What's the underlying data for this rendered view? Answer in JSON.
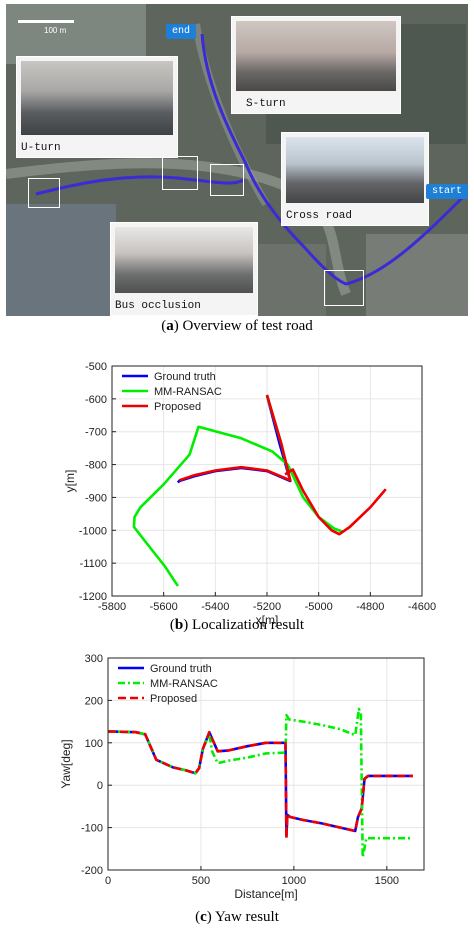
{
  "panel_a": {
    "caption_letter": "a",
    "caption_text": " Overview of test road",
    "end_tag": "end",
    "start_tag": "start",
    "scale_label": "100 m",
    "insets": [
      {
        "label": "U-turn"
      },
      {
        "label": "S-turn"
      },
      {
        "label": "Cross road"
      },
      {
        "label": "Bus occlusion"
      }
    ],
    "colors": {
      "route": "#3a2bd6",
      "tag": "#1e7fd6"
    }
  },
  "panel_b": {
    "caption_letter": "b",
    "caption_text": " Localization result"
  },
  "panel_c": {
    "caption_letter": "c",
    "caption_text": " Yaw result"
  },
  "chart_data": [
    {
      "type": "line",
      "xlabel": "x[m]",
      "ylabel": "y[m]",
      "xlim": [
        -5800,
        -4600
      ],
      "ylim": [
        -1200,
        -500
      ],
      "xticks": [
        -5800,
        -5600,
        -5400,
        -5200,
        -5000,
        -4800,
        -4600
      ],
      "yticks": [
        -500,
        -600,
        -700,
        -800,
        -900,
        -1000,
        -1100,
        -1200
      ],
      "grid": true,
      "legend_position": "top-left",
      "series": [
        {
          "name": "Ground truth",
          "color": "#0000ff",
          "style": "solid",
          "x": [
            -5200,
            -5150,
            -5110,
            -5140,
            -5200,
            -5300,
            -5400,
            -5480,
            -5540,
            -5545
          ],
          "y": [
            -590,
            -740,
            -850,
            -840,
            -820,
            -810,
            -820,
            -835,
            -850,
            -855
          ]
        },
        {
          "name": "MM-RANSAC",
          "color": "#00ee00",
          "style": "solid",
          "x": [
            -5545,
            -5595,
            -5645,
            -5695,
            -5715,
            -5713,
            -5690,
            -5600,
            -5500,
            -5465,
            -5300,
            -5180,
            -5120,
            -5060,
            -5000,
            -4940,
            -4905
          ],
          "y": [
            -1170,
            -1110,
            -1060,
            -1010,
            -990,
            -960,
            -930,
            -860,
            -770,
            -685,
            -720,
            -760,
            -800,
            -900,
            -960,
            -995,
            -1005
          ],
          "x2": [
            -5200,
            -5145,
            -5110
          ],
          "y2": [
            -590,
            -735,
            -850
          ]
        },
        {
          "name": "Proposed",
          "color": "#ee0000",
          "style": "solid",
          "x": [
            -5200,
            -5145,
            -5110,
            -5140,
            -5200,
            -5300,
            -5400,
            -5480,
            -5540
          ],
          "y": [
            -588,
            -735,
            -848,
            -838,
            -818,
            -808,
            -818,
            -832,
            -848
          ],
          "x2": [
            -5130,
            -5100,
            -5060,
            -5000,
            -4950,
            -4920,
            -4880,
            -4800,
            -4740
          ],
          "y2": [
            -830,
            -815,
            -880,
            -960,
            -1000,
            -1012,
            -990,
            -930,
            -875
          ]
        }
      ]
    },
    {
      "type": "line",
      "xlabel": "Distance[m]",
      "ylabel": "Yaw[deg]",
      "xlim": [
        0,
        1700
      ],
      "ylim": [
        -200,
        300
      ],
      "xticks": [
        0,
        500,
        1000,
        1500
      ],
      "yticks": [
        300,
        200,
        100,
        0,
        -100,
        -200
      ],
      "grid": true,
      "legend_position": "top-left",
      "series": [
        {
          "name": "Ground truth",
          "color": "#0000ff",
          "style": "solid",
          "x": [
            0,
            150,
            200,
            260,
            350,
            420,
            470,
            490,
            510,
            545,
            560,
            590,
            650,
            750,
            850,
            955,
            960,
            965,
            980,
            1050,
            1150,
            1250,
            1330,
            1345,
            1365,
            1380,
            1400,
            1500,
            1640
          ],
          "y": [
            127,
            125,
            120,
            60,
            42,
            35,
            28,
            40,
            85,
            125,
            110,
            80,
            82,
            92,
            100,
            100,
            -120,
            -70,
            -75,
            -82,
            -90,
            -100,
            -108,
            -75,
            -55,
            15,
            22,
            22,
            22
          ]
        },
        {
          "name": "MM-RANSAC",
          "color": "#00ee00",
          "style": "dash-dot",
          "x": [
            0,
            150,
            200,
            260,
            350,
            420,
            470,
            490,
            510,
            545,
            560,
            590,
            650,
            750,
            850,
            955,
            960,
            975,
            1050,
            1150,
            1250,
            1330,
            1350,
            1360,
            1370,
            1390,
            1500,
            1640
          ],
          "y": [
            127,
            125,
            120,
            60,
            42,
            35,
            28,
            40,
            85,
            120,
            80,
            52,
            58,
            65,
            75,
            77,
            165,
            155,
            150,
            142,
            132,
            118,
            180,
            170,
            -170,
            -125,
            -125,
            -125
          ]
        },
        {
          "name": "Proposed",
          "color": "#ee0000",
          "style": "dash",
          "x": [
            0,
            150,
            200,
            260,
            350,
            420,
            470,
            490,
            510,
            545,
            560,
            590,
            650,
            750,
            850,
            955,
            960,
            965,
            980,
            1050,
            1150,
            1250,
            1330,
            1345,
            1365,
            1380,
            1400,
            1500,
            1640
          ],
          "y": [
            127,
            125,
            120,
            60,
            42,
            35,
            28,
            40,
            85,
            125,
            110,
            80,
            82,
            92,
            100,
            100,
            -125,
            -70,
            -75,
            -82,
            -90,
            -100,
            -108,
            -75,
            -55,
            15,
            22,
            22,
            22
          ]
        }
      ]
    }
  ]
}
